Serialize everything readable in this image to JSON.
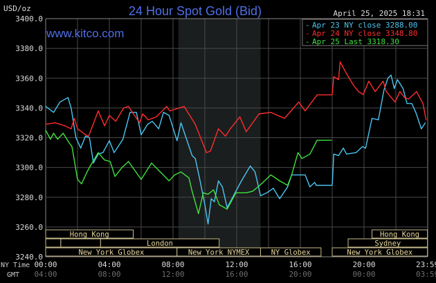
{
  "chart_data": {
    "type": "line",
    "title": "24 Hour Spot Gold (Bid)",
    "website": "www.kitco.com",
    "timestamp": "April 25, 2025 18:31",
    "ylabel": "USD/oz",
    "ylim": [
      3240,
      3400
    ],
    "yticks": [
      "3400.0",
      "3380.0",
      "3360.0",
      "3340.0",
      "3320.0",
      "3300.0",
      "3280.0",
      "3260.0",
      "3240.0"
    ],
    "grid": true,
    "legend_position": "top-right",
    "x_axis_labels": {
      "ny": "NY Time",
      "gmt": "GMT"
    },
    "xticks_ny": [
      "00:00",
      "04:00",
      "08:00",
      "12:00",
      "16:00",
      "20:00",
      "23:59"
    ],
    "xticks_gmt": [
      "04:00",
      "08:00",
      "12:00",
      "16:00",
      "20:00",
      "00:00",
      "03:59"
    ],
    "nymex_shading": [
      "08:20",
      "13:30"
    ],
    "series": [
      {
        "name": "Apr 23 NY close 3288.00",
        "color": "#4cc6f2",
        "points": [
          [
            "00:00",
            3341
          ],
          [
            "00:30",
            3337
          ],
          [
            "00:54",
            3344
          ],
          [
            "01:24",
            3347
          ],
          [
            "01:36",
            3340
          ],
          [
            "01:54",
            3320
          ],
          [
            "02:12",
            3313
          ],
          [
            "02:30",
            3321
          ],
          [
            "02:45",
            3320
          ],
          [
            "03:00",
            3303
          ],
          [
            "03:18",
            3309
          ],
          [
            "03:36",
            3310
          ],
          [
            "04:00",
            3318
          ],
          [
            "04:18",
            3310
          ],
          [
            "04:51",
            3319
          ],
          [
            "05:18",
            3337
          ],
          [
            "05:42",
            3337
          ],
          [
            "06:00",
            3322
          ],
          [
            "06:24",
            3329
          ],
          [
            "06:42",
            3331
          ],
          [
            "07:06",
            3326
          ],
          [
            "07:24",
            3337
          ],
          [
            "07:45",
            3335
          ],
          [
            "08:15",
            3318
          ],
          [
            "08:30",
            3330
          ],
          [
            "09:12",
            3308
          ],
          [
            "09:24",
            3306
          ],
          [
            "09:42",
            3291
          ],
          [
            "10:00",
            3275
          ],
          [
            "10:12",
            3262
          ],
          [
            "10:24",
            3279
          ],
          [
            "10:36",
            3277
          ],
          [
            "10:51",
            3291
          ],
          [
            "11:06",
            3287
          ],
          [
            "11:24",
            3273
          ],
          [
            "11:48",
            3281
          ],
          [
            "12:18",
            3291
          ],
          [
            "12:51",
            3301
          ],
          [
            "13:09",
            3297
          ],
          [
            "13:30",
            3281
          ],
          [
            "13:54",
            3283
          ],
          [
            "14:18",
            3286
          ],
          [
            "14:42",
            3279
          ],
          [
            "15:12",
            3287
          ],
          [
            "15:27",
            3295
          ],
          [
            "16:18",
            3295
          ],
          [
            "16:36",
            3287
          ],
          [
            "16:54",
            3290
          ],
          [
            "17:00",
            3288
          ],
          [
            "18:00",
            3288
          ],
          [
            "18:06",
            3309
          ],
          [
            "18:24",
            3308
          ],
          [
            "18:42",
            3313
          ],
          [
            "18:54",
            3309
          ],
          [
            "19:30",
            3310
          ],
          [
            "19:54",
            3314
          ],
          [
            "20:06",
            3313
          ],
          [
            "20:30",
            3333
          ],
          [
            "20:54",
            3332
          ],
          [
            "21:15",
            3352
          ],
          [
            "21:30",
            3360
          ],
          [
            "21:42",
            3362
          ],
          [
            "21:54",
            3353
          ],
          [
            "22:06",
            3359
          ],
          [
            "22:27",
            3353
          ],
          [
            "22:42",
            3343
          ],
          [
            "23:00",
            3343
          ],
          [
            "23:15",
            3337
          ],
          [
            "23:36",
            3326
          ],
          [
            "23:51",
            3330
          ]
        ]
      },
      {
        "name": "Apr 24 NY close 3348.80",
        "color": "#ff2d2d",
        "points": [
          [
            "00:00",
            3329
          ],
          [
            "00:36",
            3330
          ],
          [
            "01:12",
            3328
          ],
          [
            "01:36",
            3326
          ],
          [
            "01:48",
            3333
          ],
          [
            "02:00",
            3326
          ],
          [
            "02:15",
            3324
          ],
          [
            "02:30",
            3322
          ],
          [
            "02:42",
            3321
          ],
          [
            "03:18",
            3338
          ],
          [
            "03:42",
            3328
          ],
          [
            "04:00",
            3335
          ],
          [
            "04:24",
            3331
          ],
          [
            "04:54",
            3340
          ],
          [
            "05:12",
            3341
          ],
          [
            "05:54",
            3330
          ],
          [
            "06:06",
            3336
          ],
          [
            "06:27",
            3332
          ],
          [
            "06:57",
            3334
          ],
          [
            "07:36",
            3341
          ],
          [
            "07:48",
            3338
          ],
          [
            "08:42",
            3341
          ],
          [
            "09:24",
            3329
          ],
          [
            "10:06",
            3310
          ],
          [
            "10:21",
            3311
          ],
          [
            "10:51",
            3326
          ],
          [
            "11:18",
            3321
          ],
          [
            "11:36",
            3326
          ],
          [
            "12:12",
            3334
          ],
          [
            "12:36",
            3324
          ],
          [
            "13:24",
            3336
          ],
          [
            "14:09",
            3337
          ],
          [
            "15:00",
            3333
          ],
          [
            "15:54",
            3344
          ],
          [
            "16:18",
            3338
          ],
          [
            "17:03",
            3348.8
          ],
          [
            "18:00",
            3348.8
          ],
          [
            "18:06",
            3361
          ],
          [
            "18:24",
            3359
          ],
          [
            "18:30",
            3371
          ],
          [
            "18:54",
            3363
          ],
          [
            "19:21",
            3355
          ],
          [
            "19:39",
            3351
          ],
          [
            "19:57",
            3349
          ],
          [
            "20:18",
            3358
          ],
          [
            "20:42",
            3351
          ],
          [
            "21:12",
            3358
          ],
          [
            "21:24",
            3351
          ],
          [
            "21:57",
            3344
          ],
          [
            "22:15",
            3351
          ],
          [
            "22:33",
            3347
          ],
          [
            "22:48",
            3346
          ],
          [
            "23:18",
            3351
          ],
          [
            "23:42",
            3343
          ],
          [
            "23:54",
            3332
          ]
        ]
      },
      {
        "name": "Apr 25 Last 3318.30",
        "color": "#3fe23f",
        "points": [
          [
            "00:00",
            3325
          ],
          [
            "00:18",
            3319
          ],
          [
            "00:30",
            3323
          ],
          [
            "00:45",
            3319
          ],
          [
            "01:06",
            3323
          ],
          [
            "01:27",
            3317
          ],
          [
            "01:39",
            3314
          ],
          [
            "02:00",
            3292
          ],
          [
            "02:15",
            3289
          ],
          [
            "02:36",
            3297
          ],
          [
            "02:48",
            3301
          ],
          [
            "03:18",
            3310
          ],
          [
            "03:42",
            3305
          ],
          [
            "04:03",
            3304
          ],
          [
            "04:21",
            3294
          ],
          [
            "04:48",
            3300
          ],
          [
            "05:12",
            3304
          ],
          [
            "06:00",
            3292
          ],
          [
            "06:39",
            3303
          ],
          [
            "07:12",
            3297
          ],
          [
            "07:45",
            3291
          ],
          [
            "08:06",
            3295
          ],
          [
            "08:30",
            3297
          ],
          [
            "09:00",
            3293
          ],
          [
            "09:12",
            3284
          ],
          [
            "09:36",
            3269
          ],
          [
            "09:54",
            3283
          ],
          [
            "10:12",
            3282
          ],
          [
            "10:33",
            3285
          ],
          [
            "10:54",
            3275
          ],
          [
            "11:24",
            3272
          ],
          [
            "11:57",
            3283
          ],
          [
            "12:36",
            3283
          ],
          [
            "13:00",
            3284
          ],
          [
            "13:27",
            3288
          ],
          [
            "14:09",
            3295
          ],
          [
            "14:42",
            3291
          ],
          [
            "15:12",
            3288
          ],
          [
            "15:27",
            3295
          ],
          [
            "15:51",
            3310
          ],
          [
            "16:06",
            3306
          ],
          [
            "16:36",
            3309
          ],
          [
            "17:03",
            3318.3
          ],
          [
            "17:57",
            3318.3
          ]
        ]
      }
    ],
    "sessions": [
      {
        "label": "Hong Kong",
        "row": 0,
        "start": "00:00",
        "end": "05:30"
      },
      {
        "label": "Hong Kong",
        "row": 0,
        "start": "20:30",
        "end": "23:59"
      },
      {
        "label": "",
        "row": 1,
        "start": "00:00",
        "end": "00:57"
      },
      {
        "label": "",
        "row": 1,
        "start": "00:57",
        "end": "03:27"
      },
      {
        "label": "London",
        "row": 1,
        "start": "03:27",
        "end": "10:54"
      },
      {
        "label": "Sydney",
        "row": 1,
        "start": "19:00",
        "end": "23:59"
      },
      {
        "label": "New York Globex",
        "row": 2,
        "start": "00:00",
        "end": "08:15"
      },
      {
        "label": "New York NYMEX",
        "row": 2,
        "start": "08:15",
        "end": "13:30"
      },
      {
        "label": "NY Globex",
        "row": 2,
        "start": "13:30",
        "end": "17:18"
      },
      {
        "label": "New York Globex",
        "row": 2,
        "start": "18:00",
        "end": "23:59"
      }
    ]
  }
}
